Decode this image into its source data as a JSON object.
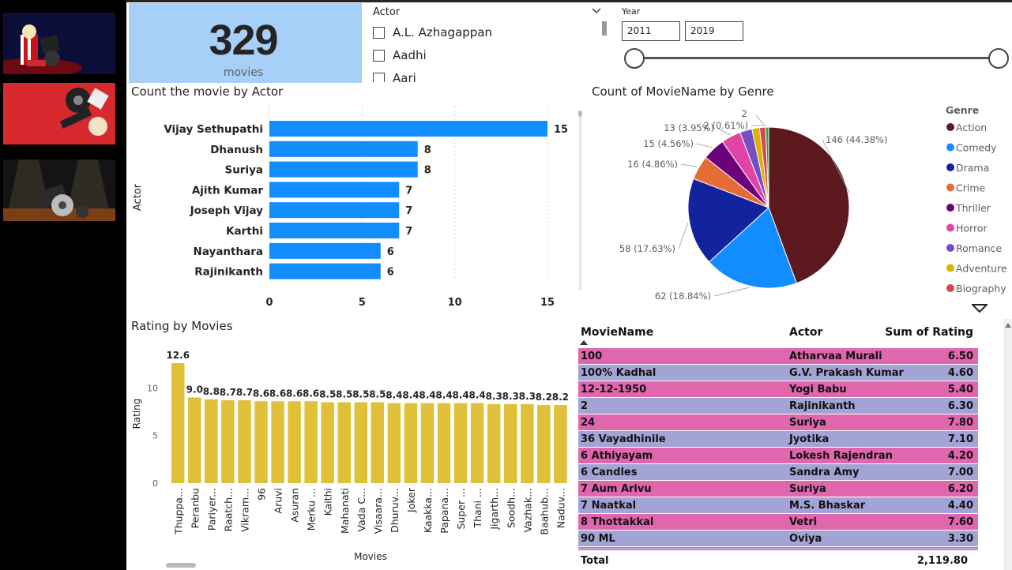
{
  "card": {
    "value": "329",
    "label": "movies"
  },
  "actor_slicer": {
    "title": "Actor",
    "items": [
      "A.L. Azhagappan",
      "Aadhi",
      "Aari"
    ]
  },
  "year_slicer": {
    "title": "Year",
    "from": "2011",
    "to": "2019"
  },
  "chart_data": [
    {
      "type": "bar",
      "orientation": "horizontal",
      "title": "Count the movie by Actor",
      "ylabel": "Actor",
      "xlabel": "",
      "categories": [
        "Vijay Sethupathi",
        "Dhanush",
        "Suriya",
        "Ajith Kumar",
        "Joseph Vijay",
        "Karthi",
        "Nayanthara",
        "Rajinikanth"
      ],
      "values": [
        15,
        8,
        8,
        7,
        7,
        7,
        6,
        6
      ],
      "x_ticks": [
        "0",
        "5",
        "10",
        "15"
      ],
      "xlim": [
        0,
        15
      ],
      "grid": true,
      "color": "#118dff"
    },
    {
      "type": "pie",
      "title": "Count of MovieName by Genre",
      "legend_title": "Genre",
      "legend_position": "right",
      "slices": [
        {
          "label": "Action",
          "value": 146,
          "data_label": "146 (44.38%)",
          "color": "#5d1a1e"
        },
        {
          "label": "Comedy",
          "value": 62,
          "data_label": "62 (18.84%)",
          "color": "#118dff"
        },
        {
          "label": "Drama",
          "value": 58,
          "data_label": "58 (17.63%)",
          "color": "#12239e"
        },
        {
          "label": "Crime",
          "value": 16,
          "data_label": "16 (4.86%)",
          "color": "#e66c37"
        },
        {
          "label": "Thriller",
          "value": 15,
          "data_label": "15 (4.56%)",
          "color": "#6b007b"
        },
        {
          "label": "Horror",
          "value": 13,
          "data_label": "13 (3.95%)",
          "color": "#e044a7"
        },
        {
          "label": "Romance",
          "value": 8,
          "data_label": "",
          "color": "#744ec2"
        },
        {
          "label": "Adventure",
          "value": 5,
          "data_label": "",
          "color": "#d9b300"
        },
        {
          "label": "Biography",
          "value": 4,
          "data_label": "",
          "color": "#d64550"
        },
        {
          "label": "",
          "value": 2,
          "data_label": "2 (0.61%)",
          "color": "#1aab40"
        }
      ],
      "extra_label": "2"
    },
    {
      "type": "bar",
      "title": "Rating by Movies",
      "xlabel": "Movies",
      "ylabel": "Rating",
      "categories": [
        "Thuppa...",
        "Peranbu",
        "Pariyer...",
        "Raatch...",
        "Vikram...",
        "96",
        "Aruvi",
        "Asuran",
        "Merku ...",
        "Kaithi",
        "Mahanati",
        "Vada C...",
        "Visaara...",
        "Dhuruv...",
        "Joker",
        "Kaakka...",
        "Papana...",
        "Super ...",
        "Thani ...",
        "Jigarth...",
        "Soodh...",
        "Vazhak...",
        "Baahub...",
        "Naduv..."
      ],
      "values": [
        12.6,
        9.0,
        8.8,
        8.7,
        8.7,
        8.6,
        8.6,
        8.6,
        8.6,
        8.5,
        8.5,
        8.5,
        8.5,
        8.4,
        8.4,
        8.4,
        8.4,
        8.4,
        8.4,
        8.3,
        8.3,
        8.3,
        8.2,
        8.2
      ],
      "data_labels": [
        "12.6",
        "9.0",
        "8.8",
        "8.7",
        "8.7",
        "8.6",
        "8.6",
        "8.6",
        "8.6",
        "8.5",
        "8.5",
        "8.5",
        "8.5",
        "8.4",
        "8.4",
        "8.4",
        "8.4",
        "8.4",
        "8.4",
        "8.3",
        "8.3",
        "8.3",
        "8.2",
        "8.2"
      ],
      "y_ticks": [
        "0",
        "5",
        "10"
      ],
      "ylim": [
        0,
        12.6
      ],
      "color": "#e0c039"
    },
    {
      "type": "table",
      "columns": [
        "MovieName",
        "Actor",
        "Sum of Rating"
      ],
      "rows": [
        [
          "100",
          "Atharvaa Murali",
          "6.50"
        ],
        [
          "100% Kadhal",
          "G.V. Prakash Kumar",
          "4.60"
        ],
        [
          "12-12-1950",
          "Yogi Babu",
          "5.40"
        ],
        [
          "2",
          "Rajinikanth",
          "6.30"
        ],
        [
          "24",
          "Suriya",
          "7.80"
        ],
        [
          "36 Vayadhinile",
          "Jyotika",
          "7.10"
        ],
        [
          "6 Athiyayam",
          "Lokesh Rajendran",
          "4.20"
        ],
        [
          "6 Candles",
          "Sandra Amy",
          "7.00"
        ],
        [
          "7 Aum Arivu",
          "Suriya",
          "6.20"
        ],
        [
          "7 Naatkal",
          "M.S. Bhaskar",
          "4.40"
        ],
        [
          "8 Thottakkal",
          "Vetri",
          "7.60"
        ],
        [
          "90 ML",
          "Oviya",
          "3.30"
        ]
      ],
      "total_label": "Total",
      "total_value": "2,119.80"
    }
  ],
  "colors": {
    "card_bg": "#a6d0f7",
    "row_pink": "#e066ae",
    "row_lavender": "#a3a3d6"
  }
}
